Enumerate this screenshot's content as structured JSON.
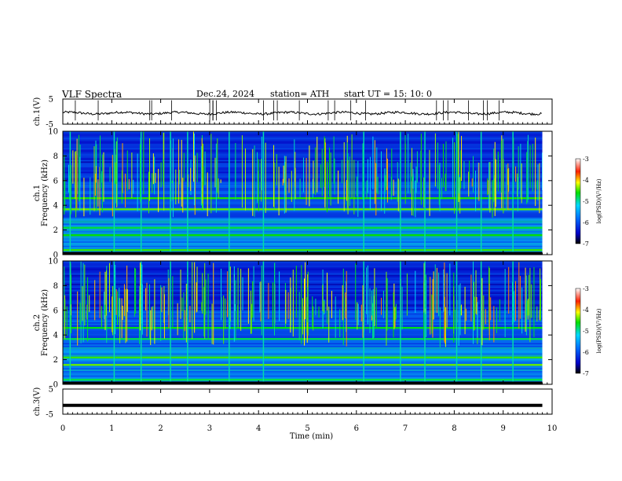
{
  "header": {
    "title": "VLF  Spectra",
    "date": "Dec.24, 2024",
    "station": "station= ATH",
    "start": "start  UT  =    15: 10: 0"
  },
  "chart_data": [
    {
      "type": "line",
      "panel": "ch1-waveform",
      "ylabel": "ch.1(V)",
      "ylim": [
        -5,
        5
      ],
      "yticks": [
        "5",
        "-5"
      ],
      "xlim": [
        0,
        10
      ]
    },
    {
      "type": "heatmap",
      "panel": "ch1-spectrogram",
      "ylabel": "ch.1\nFrequency (kHz)",
      "ylim": [
        0,
        10
      ],
      "yticks": [
        0,
        2,
        4,
        6,
        8,
        10
      ],
      "xlim": [
        0,
        10
      ],
      "colorbar": {
        "label": "log(PSD)(V²/Hz)",
        "min": -7,
        "max": -3,
        "ticks": [
          "-3",
          "-4",
          "-5",
          "-6",
          "-7"
        ]
      },
      "bands_khz": [
        0.3,
        1.5,
        2.1,
        3.6,
        4.5
      ],
      "spikes_min": [
        0.15,
        1.05,
        1.6,
        2.2,
        2.55,
        3.4,
        4.1,
        6.15,
        6.9,
        7.4,
        8.05,
        8.55,
        9.2
      ]
    },
    {
      "type": "heatmap",
      "panel": "ch2-spectrogram",
      "ylabel": "ch.2\nFrequency (kHz)",
      "ylim": [
        0,
        10
      ],
      "yticks": [
        0,
        2,
        4,
        6,
        8,
        10
      ],
      "xlim": [
        0,
        10
      ],
      "colorbar": {
        "label": "log(PSD)(V²/Hz)",
        "min": -7,
        "max": -3,
        "ticks": [
          "-3",
          "-4",
          "-5",
          "-6",
          "-7"
        ]
      },
      "bands_khz": [
        0.3,
        1.5,
        2.1,
        3.6,
        4.5
      ],
      "spikes_min": [
        0.15,
        1.05,
        1.6,
        2.2,
        2.55,
        3.4,
        4.1,
        6.15,
        6.9,
        7.4,
        8.05,
        8.55,
        9.2
      ]
    },
    {
      "type": "line",
      "panel": "ch3-waveform",
      "ylabel": "ch.3(V)",
      "ylim": [
        -5,
        5
      ],
      "yticks": [
        "5",
        "-5"
      ],
      "xlim": [
        0,
        10
      ],
      "level": -1.5
    }
  ],
  "xaxis": {
    "label": "Time  (min)",
    "ticks": [
      "0",
      "1",
      "2",
      "3",
      "4",
      "5",
      "6",
      "7",
      "8",
      "9",
      "10"
    ]
  }
}
